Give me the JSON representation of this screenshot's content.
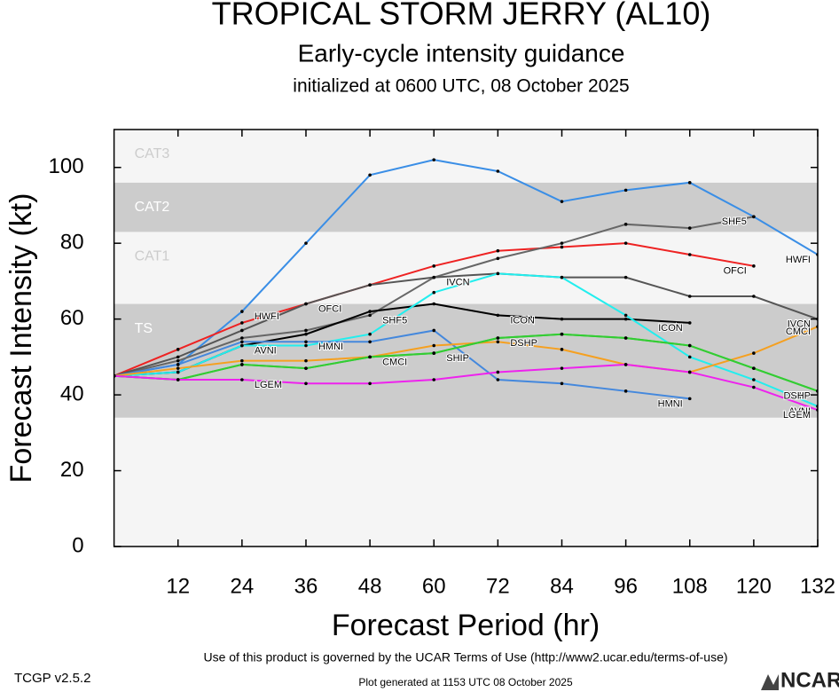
{
  "header": {
    "title": "TROPICAL STORM JERRY (AL10)",
    "subtitle": "Early-cycle intensity guidance",
    "initialized": "initialized at 0600 UTC, 08 October 2025"
  },
  "chart_data": {
    "type": "line",
    "x_label": "Forecast Period (hr)",
    "y_label": "Forecast Intensity (kt)",
    "x": [
      0,
      12,
      24,
      36,
      48,
      60,
      72,
      84,
      96,
      108,
      120,
      132
    ],
    "xlim": [
      0,
      132
    ],
    "xticks": [
      12,
      24,
      36,
      48,
      60,
      72,
      84,
      96,
      108,
      120,
      132
    ],
    "ylim": [
      0,
      110
    ],
    "yticks": [
      0,
      20,
      40,
      60,
      80,
      100
    ],
    "bands": [
      {
        "label": "TS",
        "range": [
          34,
          64
        ],
        "color": "#cccccc"
      },
      {
        "label": "CAT1",
        "range": [
          64,
          83
        ],
        "color": "#f5f5f5"
      },
      {
        "label": "CAT2",
        "range": [
          83,
          96
        ],
        "color": "#cccccc"
      },
      {
        "label": "CAT3",
        "range": [
          96,
          112
        ],
        "color": "#f5f5f5"
      }
    ],
    "background": "#f5f5f5",
    "series": [
      {
        "name": "HWFI",
        "color": "#3a8ee6",
        "values": [
          45,
          48,
          62,
          80,
          98,
          102,
          99,
          91,
          94,
          96,
          87,
          77
        ]
      },
      {
        "name": "OFCI",
        "color": "#ee2222",
        "values": [
          45,
          52,
          59,
          64,
          69,
          74,
          78,
          79,
          80,
          77,
          74,
          null
        ]
      },
      {
        "name": "SHF5",
        "color": "#666666",
        "values": [
          45,
          49,
          55,
          57,
          61,
          71,
          76,
          80,
          85,
          84,
          87,
          null
        ]
      },
      {
        "name": "IVCN",
        "color": "#555555",
        "values": [
          45,
          50,
          57,
          64,
          69,
          71,
          72,
          71,
          71,
          66,
          66,
          60
        ]
      },
      {
        "name": "ICON",
        "color": "#000000",
        "values": [
          45,
          46,
          53,
          56,
          62,
          64,
          61,
          60,
          60,
          59,
          null,
          null
        ]
      },
      {
        "name": "AVNI",
        "color": "#22eeee",
        "values": [
          45,
          46,
          53,
          53,
          56,
          67,
          72,
          71,
          61,
          50,
          44,
          37
        ]
      },
      {
        "name": "HMNI",
        "color": "#4488dd",
        "values": [
          45,
          48,
          54,
          54,
          54,
          57,
          44,
          43,
          41,
          39,
          null,
          null
        ]
      },
      {
        "name": "CMCI",
        "color": "#f5a020",
        "values": [
          45,
          47,
          49,
          49,
          50,
          53,
          54,
          52,
          48,
          46,
          51,
          58
        ]
      },
      {
        "name": "SHIP",
        "color": "#22dd22",
        "values": [
          45,
          44,
          48,
          47,
          50,
          51,
          55,
          56,
          55,
          53,
          47,
          41
        ]
      },
      {
        "name": "DSHP",
        "color": "#33cc33",
        "values": [
          45,
          44,
          48,
          47,
          50,
          51,
          55,
          56,
          55,
          53,
          47,
          41
        ]
      },
      {
        "name": "LGEM",
        "color": "#ee22ee",
        "values": [
          45,
          44,
          44,
          43,
          43,
          44,
          46,
          47,
          48,
          46,
          42,
          36
        ]
      }
    ]
  },
  "footer": {
    "terms": "Use of this product is governed by the UCAR Terms of Use (http://www2.ucar.edu/terms-of-use)",
    "version": "TCGP v2.5.2",
    "generated": "Plot generated at 1153 UTC   08 October 2025",
    "logo": "NCAR"
  }
}
